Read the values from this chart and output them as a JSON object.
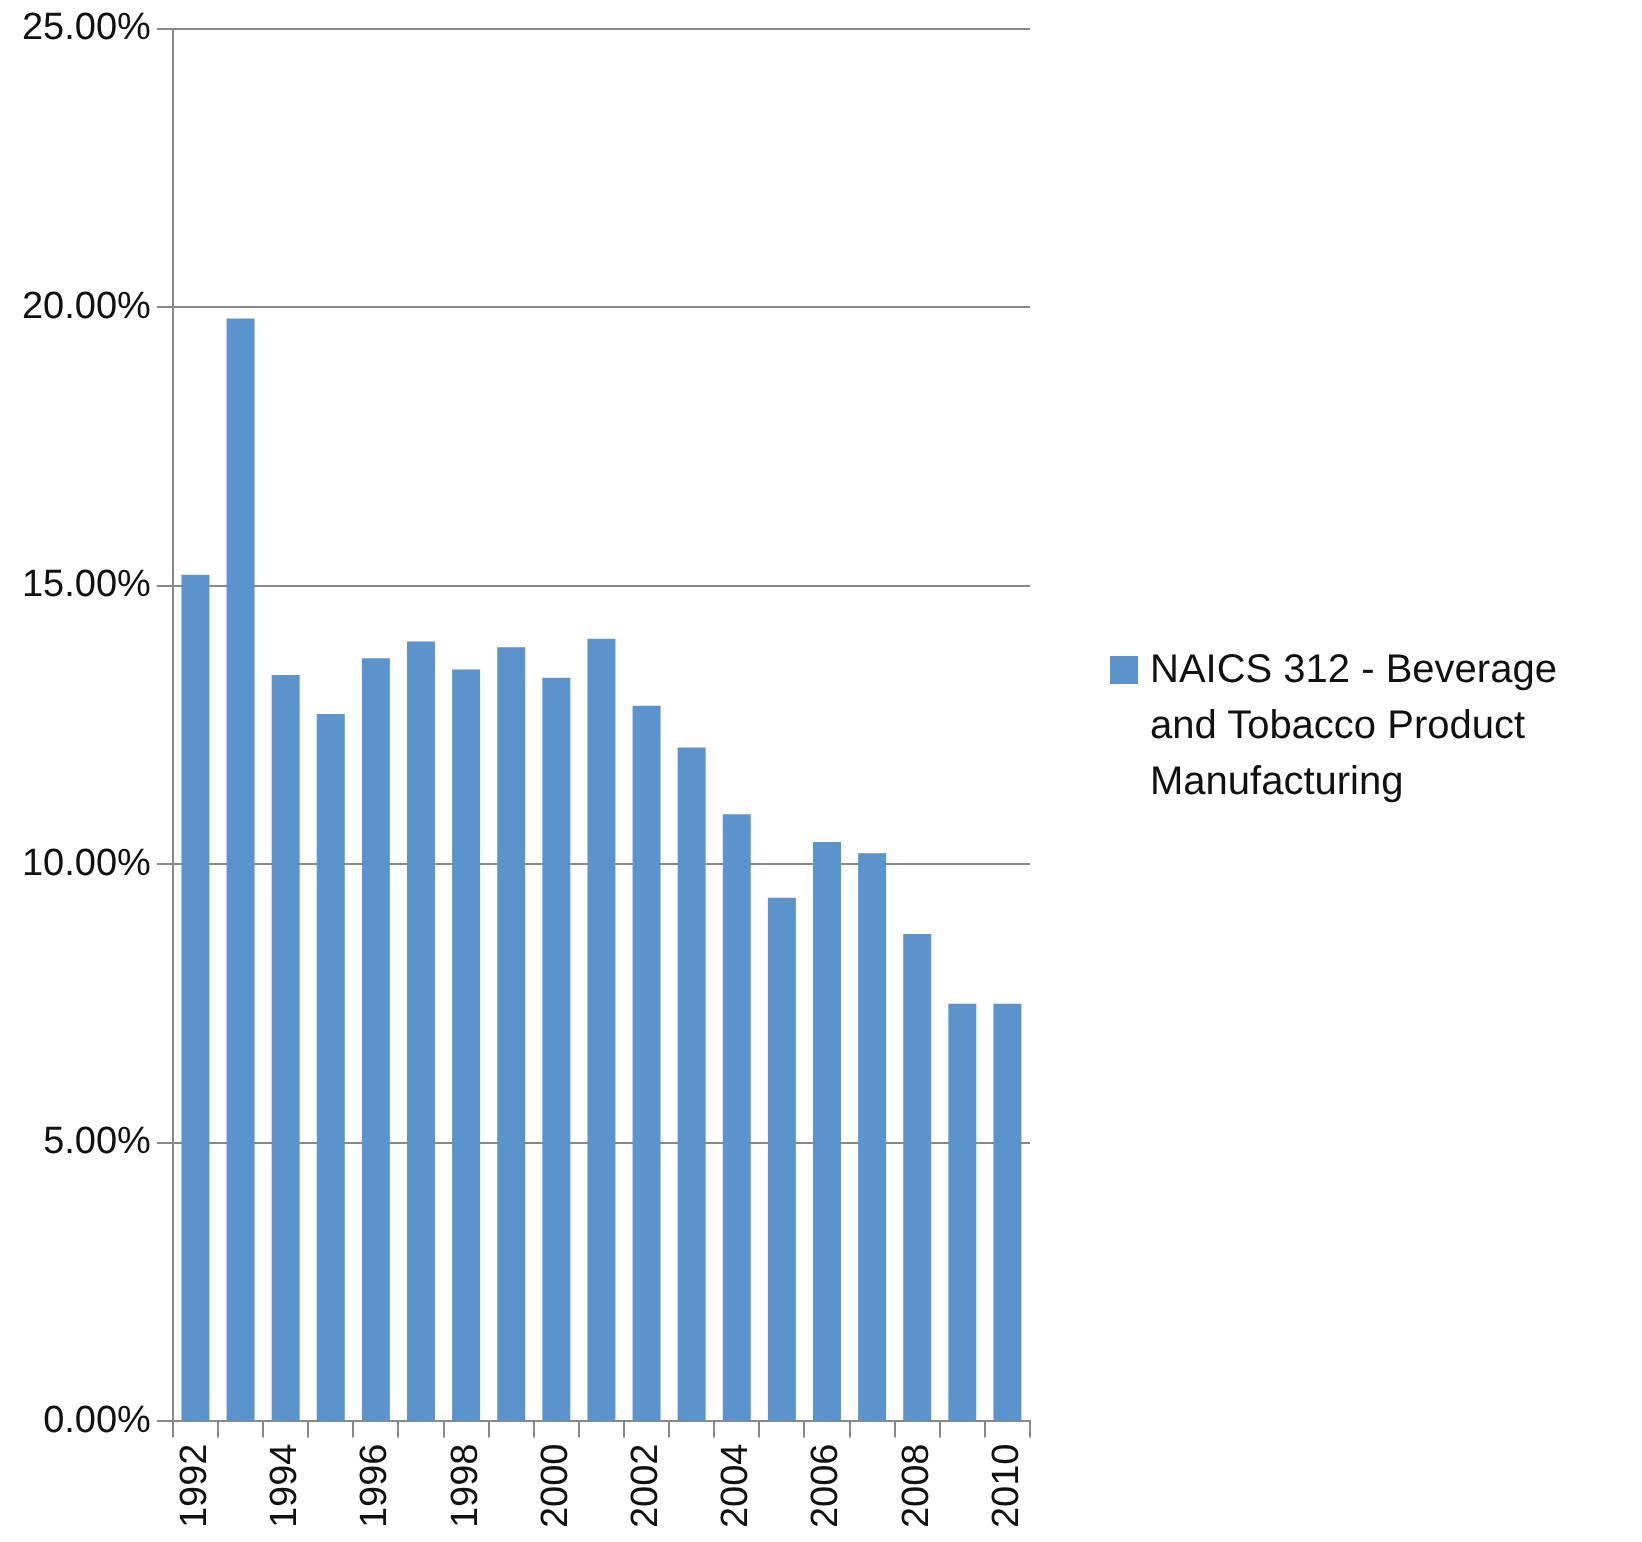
{
  "chart_data": {
    "type": "bar",
    "categories": [
      "1992",
      null,
      "1994",
      null,
      "1996",
      null,
      "1998",
      null,
      "2000",
      null,
      "2002",
      null,
      "2004",
      null,
      "2006",
      null,
      "2008",
      null,
      "2010"
    ],
    "series": [
      {
        "name": "NAICS 312 - Beverage and Tobacco Product Manufacturing",
        "color": "#5b93cd",
        "values": [
          15.2,
          19.8,
          13.4,
          12.7,
          13.7,
          14.0,
          13.5,
          13.9,
          13.35,
          14.05,
          12.85,
          12.1,
          10.9,
          9.4,
          10.4,
          10.2,
          8.75,
          7.5,
          7.5
        ]
      }
    ],
    "ylim": [
      0,
      25
    ],
    "yticks": [
      {
        "value": 0,
        "label": "0.00%"
      },
      {
        "value": 5,
        "label": "5.00%"
      },
      {
        "value": 10,
        "label": "10.00%"
      },
      {
        "value": 15,
        "label": "15.00%"
      },
      {
        "value": 20,
        "label": "20.00%"
      },
      {
        "value": 25,
        "label": "25.00%"
      }
    ],
    "grid": "y",
    "legend": "right"
  }
}
